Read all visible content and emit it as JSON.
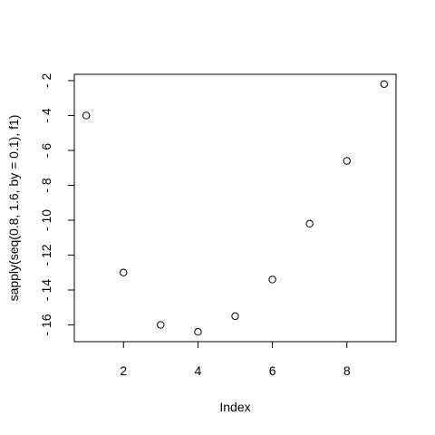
{
  "chart_data": {
    "type": "scatter",
    "title": "",
    "xlabel": "Index",
    "ylabel": "sapply(seq(0.8, 1.6, by = 0.1), f1)",
    "x": [
      1,
      2,
      3,
      4,
      5,
      6,
      7,
      8,
      9
    ],
    "y": [
      -4.0,
      -13.0,
      -16.0,
      -16.4,
      -15.5,
      -13.4,
      -10.2,
      -6.6,
      -2.2
    ],
    "xlim": [
      0.68,
      9.32
    ],
    "ylim": [
      -16.96,
      -1.64
    ],
    "x_ticks": [
      2,
      4,
      6,
      8
    ],
    "y_ticks": [
      -2,
      -4,
      -6,
      -8,
      -10,
      -12,
      -14,
      -16
    ],
    "grid": false,
    "marker": "open-circle"
  }
}
